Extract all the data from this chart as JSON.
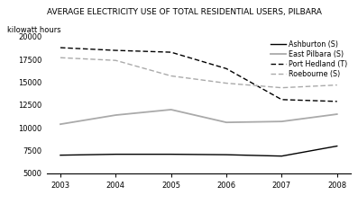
{
  "title": "AVERAGE ELECTRICITY USE OF TOTAL RESIDENTIAL USERS, PILBARA",
  "ylabel": "kilowatt hours",
  "years": [
    2003,
    2004,
    2005,
    2006,
    2007,
    2008
  ],
  "series": {
    "Ashburton (S)": {
      "values": [
        7000,
        7100,
        7100,
        7050,
        6900,
        8000
      ],
      "color": "#000000",
      "linestyle": "-",
      "linewidth": 1.0,
      "dashes": null
    },
    "East Pilbara (S)": {
      "values": [
        10400,
        11400,
        12000,
        10600,
        10700,
        11500
      ],
      "color": "#aaaaaa",
      "linestyle": "-",
      "linewidth": 1.3,
      "dashes": null
    },
    "Port Hedland (T)": {
      "values": [
        18800,
        18500,
        18300,
        16500,
        13100,
        12900
      ],
      "color": "#000000",
      "linestyle": "--",
      "linewidth": 1.0,
      "dashes": [
        4,
        2
      ]
    },
    "Roebourne (S)": {
      "values": [
        17700,
        17400,
        15700,
        14900,
        14400,
        14700
      ],
      "color": "#aaaaaa",
      "linestyle": "--",
      "linewidth": 1.0,
      "dashes": [
        4,
        2
      ]
    }
  },
  "ylim": [
    5000,
    20000
  ],
  "yticks": [
    5000,
    7500,
    10000,
    12500,
    15000,
    17500,
    20000
  ],
  "xticks": [
    2003,
    2004,
    2005,
    2006,
    2007,
    2008
  ],
  "legend_order": [
    "Ashburton (S)",
    "East Pilbara (S)",
    "Port Hedland (T)",
    "Roebourne (S)"
  ],
  "background_color": "#ffffff",
  "title_fontsize": 6.5,
  "label_fontsize": 6.0,
  "tick_fontsize": 6.0,
  "legend_fontsize": 5.8
}
